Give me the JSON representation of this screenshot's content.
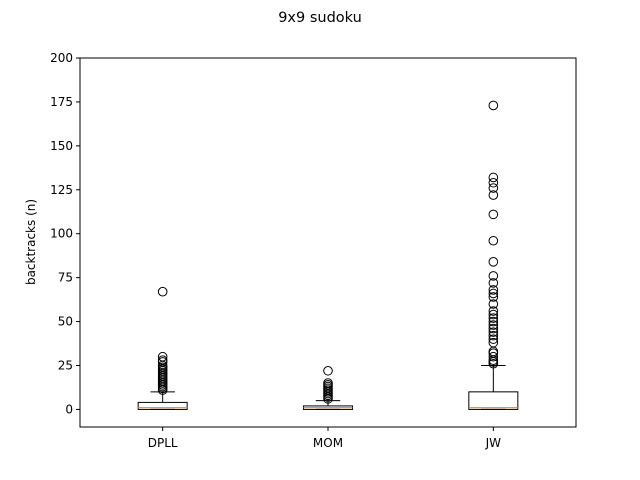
{
  "chart_data": {
    "type": "box",
    "title": "9x9 sudoku",
    "xlabel": "",
    "ylabel": "backtracks (n)",
    "ylim": [
      -10,
      200
    ],
    "yticks": [
      0,
      25,
      50,
      75,
      100,
      125,
      150,
      175,
      200
    ],
    "grid": false,
    "colors": {
      "box_edge": "#000000",
      "median": "#ff7f0e",
      "flier": "#000000"
    },
    "categories": [
      "DPLL",
      "MOM",
      "JW"
    ],
    "boxes": [
      {
        "label": "DPLL",
        "whisker_low": 0,
        "q1": 0,
        "median": 1,
        "q3": 4,
        "whisker_high": 10,
        "fliers": [
          11,
          12,
          13,
          14,
          15,
          16,
          17,
          18,
          19,
          20,
          21,
          22,
          23,
          24,
          25,
          27,
          28,
          30,
          67
        ]
      },
      {
        "label": "MOM",
        "whisker_low": 0,
        "q1": 0,
        "median": 1,
        "q3": 2,
        "whisker_high": 5,
        "fliers": [
          6,
          7,
          8,
          9,
          10,
          11,
          12,
          13,
          14,
          15,
          22
        ]
      },
      {
        "label": "JW",
        "whisker_low": 0,
        "q1": 0,
        "median": 1,
        "q3": 10,
        "whisker_high": 25,
        "fliers": [
          26,
          27,
          28,
          30,
          32,
          33,
          38,
          40,
          42,
          44,
          46,
          48,
          50,
          52,
          54,
          56,
          60,
          64,
          66,
          68,
          72,
          76,
          84,
          96,
          111,
          122,
          126,
          129,
          132,
          173
        ]
      }
    ]
  }
}
